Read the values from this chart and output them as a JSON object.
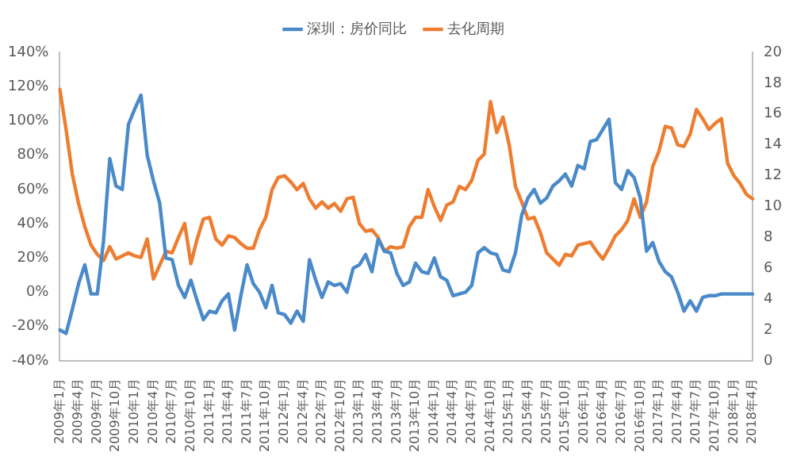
{
  "chart_data": {
    "type": "line",
    "legend": "top",
    "grid": false,
    "marker": "none",
    "line_style": "solid",
    "categories": [
      "2009年1月",
      null,
      null,
      "2009年4月",
      null,
      null,
      "2009年7月",
      null,
      null,
      "2009年10月",
      null,
      null,
      "2010年1月",
      null,
      null,
      "2010年4月",
      null,
      null,
      "2010年7月",
      null,
      null,
      "2010年10月",
      null,
      null,
      "2011年1月",
      null,
      null,
      "2011年4月",
      null,
      null,
      "2011年7月",
      null,
      null,
      "2011年10月",
      null,
      null,
      "2012年1月",
      null,
      null,
      "2012年4月",
      null,
      null,
      "2012年7月",
      null,
      null,
      "2012年10月",
      null,
      null,
      "2013年1月",
      null,
      null,
      "2013年4月",
      null,
      null,
      "2013年7月",
      null,
      null,
      "2013年10月",
      null,
      null,
      "2014年1月",
      null,
      null,
      "2014年4月",
      null,
      null,
      "2014年7月",
      null,
      null,
      "2014年10月",
      null,
      null,
      "2015年1月",
      null,
      null,
      "2015年4月",
      null,
      null,
      "2015年7月",
      null,
      null,
      "2015年10月",
      null,
      null,
      "2016年1月",
      null,
      null,
      "2016年4月",
      null,
      null,
      "2016年7月",
      null,
      null,
      "2016年10月",
      null,
      null,
      "2017年1月",
      null,
      null,
      "2017年4月",
      null,
      null,
      "2017年7月",
      null,
      null,
      "2017年10月",
      null,
      null,
      "2018年1月",
      null,
      null,
      "2018年4月"
    ],
    "ylim": [
      -40,
      140
    ],
    "yticks": [
      {
        "value": -40,
        "label": "-40%"
      },
      {
        "value": -20,
        "label": "-20%"
      },
      {
        "value": 0,
        "label": "0%"
      },
      {
        "value": 20,
        "label": "20%"
      },
      {
        "value": 40,
        "label": "40%"
      },
      {
        "value": 60,
        "label": "60%"
      },
      {
        "value": 80,
        "label": "80%"
      },
      {
        "value": 100,
        "label": "100%"
      },
      {
        "value": 120,
        "label": "120%"
      },
      {
        "value": 140,
        "label": "140%"
      }
    ],
    "y2lim": [
      0,
      20
    ],
    "y2ticks": [
      0,
      2,
      4,
      6,
      8,
      10,
      12,
      14,
      16,
      18,
      20
    ],
    "series": [
      {
        "name": "深圳：房价同比",
        "color": "#4a8ac9",
        "values": [
          -22,
          -24,
          -10,
          5,
          16,
          -1,
          -1,
          30,
          78,
          62,
          60,
          98,
          107,
          115,
          80,
          65,
          52,
          20,
          19,
          4,
          -3,
          7,
          -5,
          -16,
          -11,
          -12,
          -5,
          -1,
          -22,
          -2,
          16,
          5,
          0,
          -9,
          4,
          -12,
          -13,
          -18,
          -11,
          -17,
          19,
          7,
          -3,
          6,
          4,
          5,
          0,
          14,
          16,
          22,
          12,
          31,
          24,
          23,
          11,
          4,
          6,
          17,
          12,
          11,
          20,
          9,
          7,
          -2,
          -1,
          0,
          4,
          23,
          26,
          23,
          22,
          13,
          12,
          23,
          45,
          55,
          60,
          52,
          55,
          62,
          65,
          69,
          62,
          74,
          72,
          88,
          89,
          95,
          101,
          64,
          60,
          71,
          67,
          55,
          24,
          29,
          18,
          12,
          9,
          0,
          -11,
          -5,
          -11,
          -3,
          -2,
          -2,
          -1,
          -1,
          -1,
          -1,
          -1,
          -1
        ]
      },
      {
        "name": "去化周期",
        "color": "#ed7d31",
        "axis": "y2",
        "values": [
          17.6,
          15,
          12.1,
          10.2,
          8.7,
          7.5,
          6.9,
          6.5,
          7.4,
          6.6,
          6.8,
          7.0,
          6.8,
          6.7,
          7.9,
          5.3,
          6.2,
          7.1,
          7.0,
          8.0,
          8.9,
          6.3,
          7.9,
          9.2,
          9.3,
          7.9,
          7.5,
          8.1,
          8.0,
          7.6,
          7.3,
          7.3,
          8.5,
          9.3,
          11.1,
          11.9,
          12.0,
          11.6,
          11.1,
          11.5,
          10.5,
          9.9,
          10.3,
          9.9,
          10.2,
          9.7,
          10.5,
          10.6,
          8.9,
          8.4,
          8.5,
          8.0,
          7.1,
          7.4,
          7.3,
          7.4,
          8.7,
          9.3,
          9.3,
          11.1,
          10.0,
          9.1,
          10.1,
          10.3,
          11.3,
          11.1,
          11.7,
          13.0,
          13.4,
          16.8,
          14.8,
          15.8,
          14.0,
          11.3,
          10.3,
          9.2,
          9.3,
          8.3,
          7.0,
          6.6,
          6.2,
          6.9,
          6.8,
          7.5,
          7.6,
          7.7,
          7.1,
          6.6,
          7.3,
          8.1,
          8.5,
          9.1,
          10.5,
          9.3,
          10.3,
          12.6,
          13.6,
          15.2,
          15.1,
          14.0,
          13.9,
          14.7,
          16.3,
          15.7,
          15.0,
          15.4,
          15.7,
          12.8,
          12.0,
          11.5,
          10.8,
          10.5
        ]
      }
    ]
  }
}
